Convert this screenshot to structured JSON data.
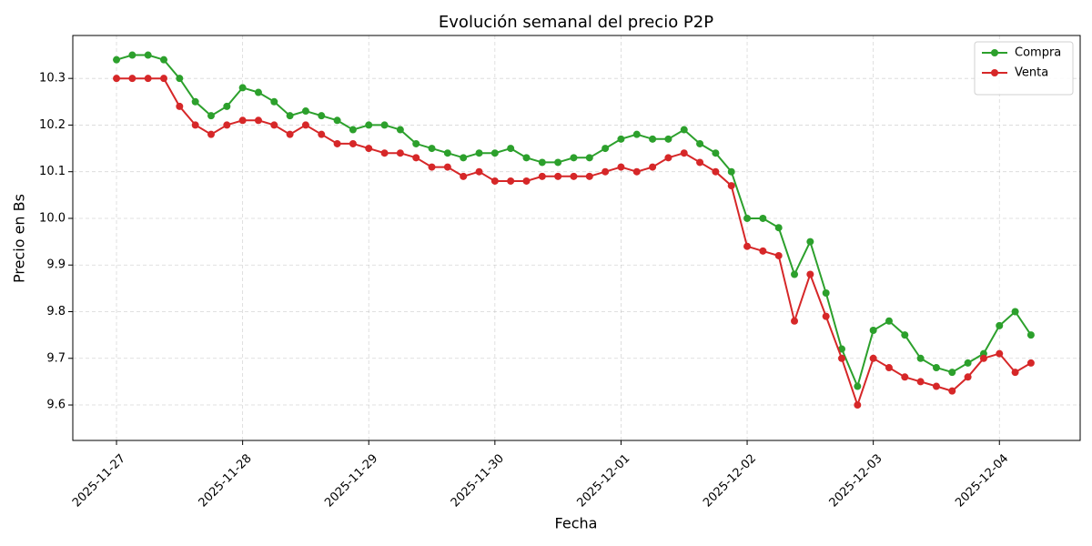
{
  "chart_data": {
    "type": "line",
    "title": "Evolución semanal del precio P2P",
    "x_label": "Fecha",
    "y_label": "Precio en Bs",
    "x": [
      "2025-11-27 00:00",
      "2025-11-27 03:00",
      "2025-11-27 06:00",
      "2025-11-27 09:00",
      "2025-11-27 12:00",
      "2025-11-27 15:00",
      "2025-11-27 18:00",
      "2025-11-27 21:00",
      "2025-11-28 00:00",
      "2025-11-28 03:00",
      "2025-11-28 06:00",
      "2025-11-28 09:00",
      "2025-11-28 12:00",
      "2025-11-28 15:00",
      "2025-11-28 18:00",
      "2025-11-28 21:00",
      "2025-11-29 00:00",
      "2025-11-29 03:00",
      "2025-11-29 06:00",
      "2025-11-29 09:00",
      "2025-11-29 12:00",
      "2025-11-29 15:00",
      "2025-11-29 18:00",
      "2025-11-29 21:00",
      "2025-11-30 00:00",
      "2025-11-30 03:00",
      "2025-11-30 06:00",
      "2025-11-30 09:00",
      "2025-11-30 12:00",
      "2025-11-30 15:00",
      "2025-11-30 18:00",
      "2025-11-30 21:00",
      "2025-12-01 00:00",
      "2025-12-01 03:00",
      "2025-12-01 06:00",
      "2025-12-01 09:00",
      "2025-12-01 12:00",
      "2025-12-01 15:00",
      "2025-12-01 18:00",
      "2025-12-01 21:00",
      "2025-12-02 00:00",
      "2025-12-02 03:00",
      "2025-12-02 06:00",
      "2025-12-02 09:00",
      "2025-12-02 12:00",
      "2025-12-02 15:00",
      "2025-12-02 18:00",
      "2025-12-02 21:00",
      "2025-12-03 00:00",
      "2025-12-03 03:00",
      "2025-12-03 06:00",
      "2025-12-03 09:00",
      "2025-12-03 12:00",
      "2025-12-03 15:00",
      "2025-12-03 18:00",
      "2025-12-03 21:00",
      "2025-12-04 00:00",
      "2025-12-04 03:00",
      "2025-12-04 06:00"
    ],
    "series": [
      {
        "name": "Compra",
        "color": "#2ca02c",
        "values": [
          10.34,
          10.35,
          10.35,
          10.34,
          10.3,
          10.25,
          10.22,
          10.24,
          10.28,
          10.27,
          10.25,
          10.22,
          10.23,
          10.22,
          10.21,
          10.19,
          10.2,
          10.2,
          10.19,
          10.16,
          10.15,
          10.14,
          10.13,
          10.14,
          10.14,
          10.15,
          10.13,
          10.12,
          10.12,
          10.13,
          10.13,
          10.15,
          10.17,
          10.18,
          10.17,
          10.17,
          10.19,
          10.16,
          10.14,
          10.1,
          10.0,
          10.0,
          9.98,
          9.88,
          9.95,
          9.84,
          9.72,
          9.64,
          9.76,
          9.78,
          9.75,
          9.7,
          9.68,
          9.67,
          9.69,
          9.71,
          9.77,
          9.8,
          9.75
        ]
      },
      {
        "name": "Venta",
        "color": "#d62728",
        "values": [
          10.3,
          10.3,
          10.3,
          10.3,
          10.24,
          10.2,
          10.18,
          10.2,
          10.21,
          10.21,
          10.2,
          10.18,
          10.2,
          10.18,
          10.16,
          10.16,
          10.15,
          10.14,
          10.14,
          10.13,
          10.11,
          10.11,
          10.09,
          10.1,
          10.08,
          10.08,
          10.08,
          10.09,
          10.09,
          10.09,
          10.09,
          10.1,
          10.11,
          10.1,
          10.11,
          10.13,
          10.14,
          10.12,
          10.1,
          10.07,
          9.94,
          9.93,
          9.92,
          9.78,
          9.88,
          9.79,
          9.7,
          9.6,
          9.7,
          9.68,
          9.66,
          9.65,
          9.64,
          9.63,
          9.66,
          9.7,
          9.71,
          9.67,
          9.69
        ]
      }
    ],
    "xlim": [
      "2025-11-26 15:41",
      "2025-12-04 15:22"
    ],
    "xticks": [
      "2025-11-27",
      "2025-11-28",
      "2025-11-29",
      "2025-11-30",
      "2025-12-01",
      "2025-12-02",
      "2025-12-03",
      "2025-12-04"
    ],
    "ylim": [
      9.524,
      10.392
    ],
    "yticks": [
      9.6,
      9.7,
      9.8,
      9.9,
      {
        "value": 10.0,
        "label": "10.0"
      },
      10.1,
      10.2,
      10.3
    ],
    "grid": true,
    "legend": "upper right"
  }
}
